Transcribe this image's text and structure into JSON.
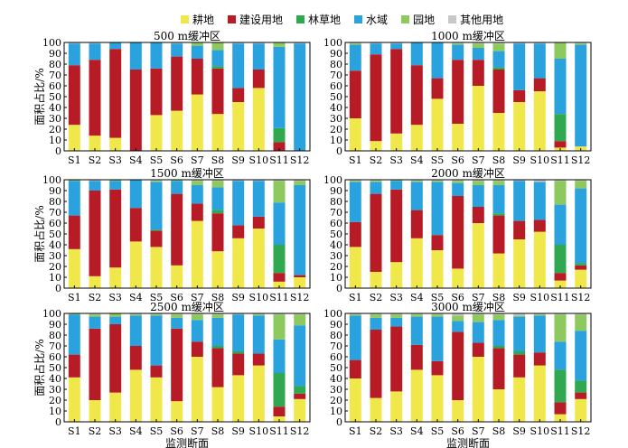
{
  "chart_data": {
    "type": "bar",
    "stacked": true,
    "legend_position": "top",
    "legend": [
      {
        "name": "耕地",
        "color": "#f0e84a"
      },
      {
        "name": "建设用地",
        "color": "#b71c26"
      },
      {
        "name": "林草地",
        "color": "#2fa84f"
      },
      {
        "name": "水域",
        "color": "#2aa2dd"
      },
      {
        "name": "园地",
        "color": "#8dc95e"
      },
      {
        "name": "其他用地",
        "color": "#c8c8c8"
      }
    ],
    "categories": [
      "S1",
      "S2",
      "S3",
      "S4",
      "S5",
      "S6",
      "S7",
      "S8",
      "S9",
      "S10",
      "S11",
      "S12"
    ],
    "ylim": [
      0,
      100
    ],
    "yticks": [
      0,
      10,
      20,
      30,
      40,
      50,
      60,
      70,
      80,
      90,
      100
    ],
    "ylabel": "面积占比/%",
    "xlabel": "监测断面",
    "panels": [
      {
        "title": "500 m缓冲区",
        "series": {
          "耕地": [
            24,
            14,
            12,
            0,
            33,
            37,
            52,
            34,
            45,
            58,
            0,
            0
          ],
          "建设用地": [
            55,
            70,
            82,
            75,
            43,
            50,
            33,
            42,
            13,
            17,
            8,
            0
          ],
          "林草地": [
            0,
            0,
            0,
            0,
            0,
            0,
            0,
            2,
            0,
            0,
            13,
            0
          ],
          "水域": [
            20,
            15,
            6,
            25,
            24,
            12,
            12,
            15,
            41,
            24,
            75,
            99
          ],
          "园地": [
            0,
            0,
            0,
            0,
            0,
            0,
            3,
            7,
            0,
            0,
            4,
            0
          ],
          "其他用地": [
            1,
            1,
            0,
            0,
            0,
            1,
            0,
            0,
            1,
            1,
            0,
            1
          ]
        }
      },
      {
        "title": "1000 m缓冲区",
        "series": {
          "耕地": [
            30,
            9,
            16,
            24,
            48,
            25,
            60,
            35,
            45,
            55,
            3,
            4
          ],
          "建设用地": [
            44,
            80,
            78,
            55,
            19,
            59,
            24,
            40,
            11,
            12,
            6,
            0
          ],
          "林草地": [
            0,
            0,
            0,
            0,
            0,
            0,
            0,
            2,
            0,
            0,
            25,
            0
          ],
          "水域": [
            24,
            10,
            5,
            21,
            33,
            14,
            11,
            15,
            43,
            32,
            51,
            94
          ],
          "园地": [
            1,
            0,
            0,
            0,
            0,
            1,
            4,
            7,
            0,
            0,
            15,
            1
          ],
          "其他用地": [
            1,
            1,
            1,
            0,
            0,
            1,
            1,
            1,
            1,
            1,
            0,
            1
          ]
        }
      },
      {
        "title": "1500 m缓冲区",
        "series": {
          "耕地": [
            36,
            11,
            19,
            43,
            38,
            21,
            62,
            34,
            46,
            55,
            6,
            10
          ],
          "建设用地": [
            31,
            79,
            72,
            31,
            15,
            66,
            16,
            35,
            12,
            11,
            8,
            2
          ],
          "林草地": [
            0,
            0,
            0,
            0,
            1,
            0,
            0,
            3,
            0,
            0,
            26,
            0
          ],
          "水域": [
            32,
            9,
            8,
            26,
            44,
            12,
            17,
            21,
            41,
            33,
            39,
            83
          ],
          "园地": [
            1,
            0,
            1,
            0,
            1,
            1,
            4,
            6,
            0,
            0,
            20,
            4
          ],
          "其他用地": [
            0,
            1,
            0,
            0,
            1,
            0,
            1,
            1,
            1,
            1,
            1,
            1
          ]
        }
      },
      {
        "title": "2000 m缓冲区",
        "series": {
          "耕地": [
            38,
            15,
            24,
            46,
            35,
            18,
            60,
            32,
            45,
            52,
            7,
            17
          ],
          "建设用地": [
            23,
            72,
            67,
            26,
            14,
            67,
            15,
            35,
            17,
            11,
            7,
            4
          ],
          "林草地": [
            0,
            0,
            0,
            0,
            0,
            0,
            0,
            2,
            0,
            0,
            26,
            2
          ],
          "水域": [
            37,
            11,
            8,
            26,
            49,
            12,
            20,
            26,
            37,
            35,
            37,
            69
          ],
          "园地": [
            1,
            1,
            1,
            1,
            1,
            2,
            4,
            4,
            0,
            0,
            22,
            7
          ],
          "其他用地": [
            1,
            1,
            0,
            1,
            1,
            1,
            1,
            1,
            1,
            2,
            1,
            1
          ]
        }
      },
      {
        "title": "2500 m缓冲区",
        "series": {
          "耕地": [
            41,
            20,
            27,
            48,
            41,
            19,
            60,
            32,
            43,
            52,
            5,
            21
          ],
          "建设用地": [
            21,
            66,
            63,
            22,
            11,
            67,
            14,
            36,
            20,
            11,
            9,
            5
          ],
          "林草地": [
            0,
            0,
            0,
            0,
            0,
            0,
            0,
            2,
            2,
            0,
            31,
            7
          ],
          "水域": [
            37,
            11,
            7,
            28,
            46,
            10,
            20,
            26,
            34,
            35,
            31,
            56
          ],
          "园地": [
            1,
            2,
            3,
            1,
            1,
            3,
            5,
            3,
            0,
            1,
            23,
            10
          ],
          "其他用地": [
            0,
            1,
            0,
            1,
            1,
            1,
            1,
            1,
            1,
            1,
            1,
            1
          ]
        }
      },
      {
        "title": "3000 m缓冲区",
        "series": {
          "耕地": [
            40,
            22,
            28,
            48,
            43,
            20,
            60,
            30,
            41,
            52,
            7,
            21
          ],
          "建设用地": [
            17,
            63,
            60,
            23,
            13,
            63,
            13,
            38,
            21,
            12,
            11,
            6
          ],
          "林草地": [
            0,
            0,
            0,
            0,
            0,
            0,
            0,
            2,
            3,
            0,
            30,
            11
          ],
          "水域": [
            41,
            11,
            8,
            26,
            41,
            10,
            19,
            24,
            32,
            34,
            26,
            46
          ],
          "园地": [
            1,
            3,
            3,
            2,
            2,
            5,
            7,
            5,
            1,
            1,
            25,
            15
          ],
          "其他用地": [
            1,
            1,
            1,
            1,
            1,
            2,
            1,
            1,
            2,
            1,
            1,
            1
          ]
        }
      }
    ]
  }
}
